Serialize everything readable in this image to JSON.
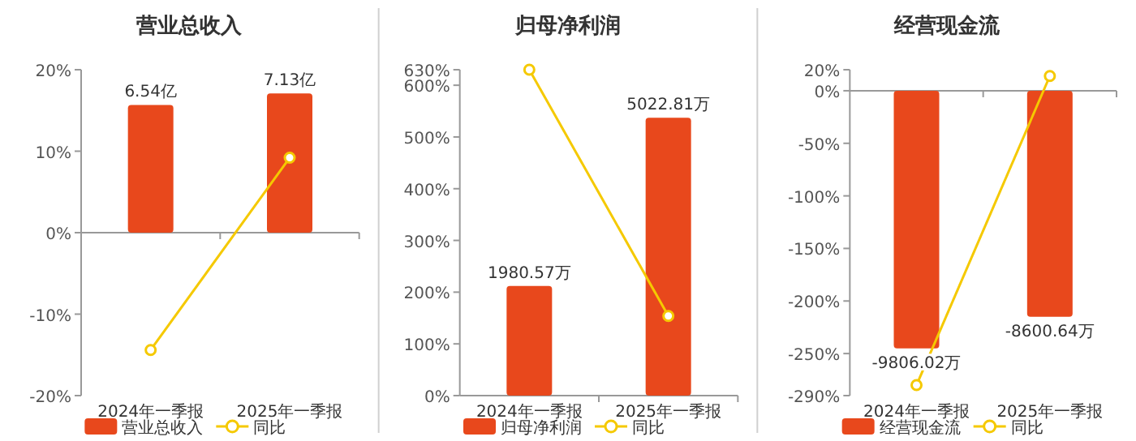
{
  "chart_data": [
    {
      "type": "bar",
      "title": "营业总收入",
      "categories": [
        "2024年一季报",
        "2025年一季报"
      ],
      "series": [
        {
          "name": "营业总收入",
          "color": "#e8481c",
          "values": [
            6.54,
            7.13
          ],
          "value_labels": [
            "6.54亿",
            "7.13亿"
          ],
          "axis": "y2"
        },
        {
          "name": "同比",
          "type": "line",
          "color": "#f5c900",
          "values": [
            -14.4,
            9.2
          ]
        }
      ],
      "ylim": [
        -20,
        20
      ],
      "yticks": [
        {
          "value": -20,
          "label": "-20%"
        },
        {
          "value": -10,
          "label": "-10%"
        },
        {
          "value": 0,
          "label": "0%"
        },
        {
          "value": 10,
          "label": "10%"
        },
        {
          "value": 20,
          "label": "20%"
        }
      ],
      "y2lim": [
        -8.34,
        8.34
      ],
      "legend": "bottom",
      "marker": "circle"
    },
    {
      "type": "bar",
      "title": "归母净利润",
      "categories": [
        "2024年一季报",
        "2025年一季报"
      ],
      "series": [
        {
          "name": "归母净利润",
          "color": "#e8481c",
          "values": [
            1980.57,
            5022.81
          ],
          "value_labels": [
            "1980.57万",
            "5022.81万"
          ],
          "axis": "y2"
        },
        {
          "name": "同比",
          "type": "line",
          "color": "#f5c900",
          "values": [
            630,
            154
          ]
        }
      ],
      "ylim": [
        0,
        630
      ],
      "yticks": [
        {
          "value": 0,
          "label": "0%"
        },
        {
          "value": 100,
          "label": "100%"
        },
        {
          "value": 200,
          "label": "200%"
        },
        {
          "value": 300,
          "label": "300%"
        },
        {
          "value": 400,
          "label": "400%"
        },
        {
          "value": 500,
          "label": "500%"
        },
        {
          "value": 600,
          "label": "600%"
        },
        {
          "value": 630,
          "label": "630%"
        }
      ],
      "y2lim": [
        0,
        5890
      ],
      "legend": "bottom",
      "marker": "circle"
    },
    {
      "type": "bar",
      "title": "经营现金流",
      "categories": [
        "2024年一季报",
        "2025年一季报"
      ],
      "series": [
        {
          "name": "经营现金流",
          "color": "#e8481c",
          "values": [
            -9806.02,
            -8600.64
          ],
          "value_labels": [
            "-9806.02万",
            "-8600.64万"
          ],
          "axis": "y2"
        },
        {
          "name": "同比",
          "type": "line",
          "color": "#f5c900",
          "values": [
            -280,
            14
          ]
        }
      ],
      "ylim": [
        -290,
        20
      ],
      "yticks": [
        {
          "value": -290,
          "label": "-290%"
        },
        {
          "value": -250,
          "label": "-250%"
        },
        {
          "value": -200,
          "label": "-200%"
        },
        {
          "value": -150,
          "label": "-150%"
        },
        {
          "value": -100,
          "label": "-100%"
        },
        {
          "value": -50,
          "label": "-50%"
        },
        {
          "value": 0,
          "label": "0%"
        },
        {
          "value": 20,
          "label": "20%"
        }
      ],
      "y2lim": [
        -11600,
        800
      ],
      "legend": "bottom",
      "marker": "circle"
    }
  ]
}
